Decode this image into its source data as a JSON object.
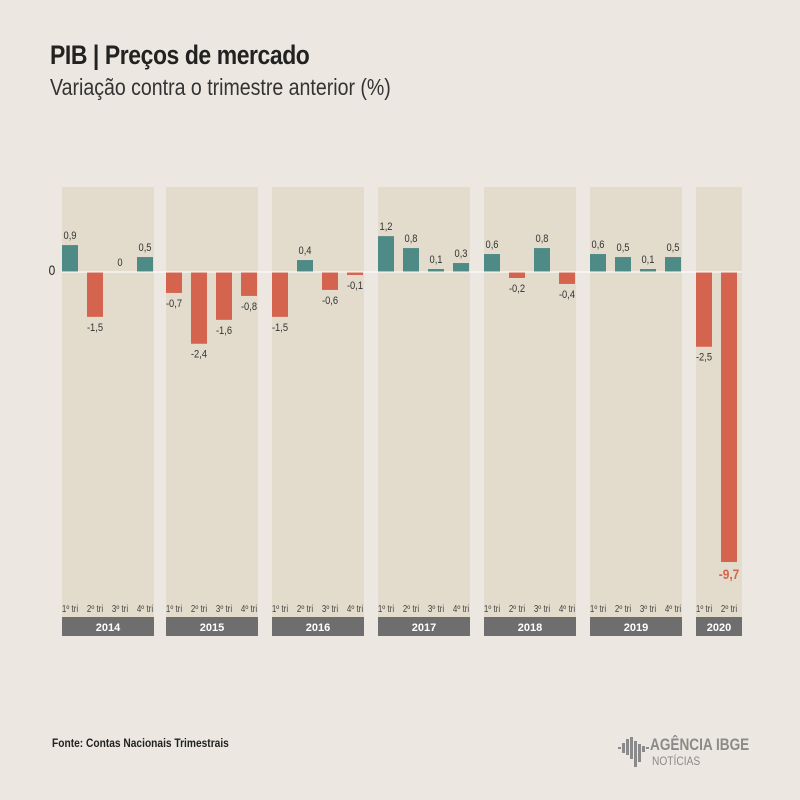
{
  "header": {
    "title": "PIB | Preços de mercado",
    "subtitle": "Variação contra o trimestre anterior (%)"
  },
  "source": "Fonte: Contas Nacionais Trimestrais",
  "logo": {
    "line1": "AGÊNCIA IBGE",
    "line2": "NOTÍCIAS"
  },
  "colors": {
    "positive": "#4e8a86",
    "negative": "#d4644e",
    "panel": "#e3dccd",
    "year_bar": "#6e6e6e"
  },
  "chart_data": {
    "type": "bar",
    "title": "PIB | Preços de mercado",
    "subtitle": "Variação contra o trimestre anterior (%)",
    "zero_label": "0",
    "quarter_labels": [
      "1º tri",
      "2º tri",
      "3º tri",
      "4º tri"
    ],
    "groups": [
      {
        "year": "2014",
        "values": [
          0.9,
          -1.5,
          0,
          0.5
        ],
        "labels": [
          "0,9",
          "-1,5",
          "0",
          "0,5"
        ]
      },
      {
        "year": "2015",
        "values": [
          -0.7,
          -2.4,
          -1.6,
          -0.8
        ],
        "labels": [
          "-0,7",
          "-2,4",
          "-1,6",
          "-0,8"
        ]
      },
      {
        "year": "2016",
        "values": [
          -1.5,
          0.4,
          -0.6,
          -0.1
        ],
        "labels": [
          "-1,5",
          "0,4",
          "-0,6",
          "-0,1"
        ]
      },
      {
        "year": "2017",
        "values": [
          1.2,
          0.8,
          0.1,
          0.3
        ],
        "labels": [
          "1,2",
          "0,8",
          "0,1",
          "0,3"
        ]
      },
      {
        "year": "2018",
        "values": [
          0.6,
          -0.2,
          0.8,
          -0.4
        ],
        "labels": [
          "0,6",
          "-0,2",
          "0,8",
          "-0,4"
        ]
      },
      {
        "year": "2019",
        "values": [
          0.6,
          0.5,
          0.1,
          0.5
        ],
        "labels": [
          "0,6",
          "0,5",
          "0,1",
          "0,5"
        ]
      },
      {
        "year": "2020",
        "values": [
          -2.5,
          -9.7
        ],
        "labels": [
          "-2,5",
          "-9,7"
        ]
      }
    ],
    "ylim": [
      -9.7,
      2.9
    ]
  }
}
